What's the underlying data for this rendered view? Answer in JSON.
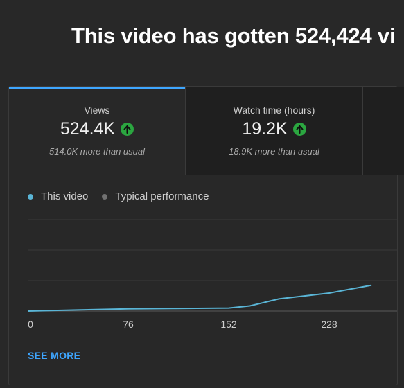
{
  "headline": "This video has gotten 524,424 vi",
  "tabs": [
    {
      "label": "Views",
      "value": "524.4K",
      "trend": "up",
      "sub": "514.0K more than usual",
      "active": true
    },
    {
      "label": "Watch time (hours)",
      "value": "19.2K",
      "trend": "up",
      "sub": "18.9K more than usual",
      "active": false
    }
  ],
  "legend": {
    "this_video": "This video",
    "typical": "Typical performance"
  },
  "colors": {
    "accent": "#3ea6ff",
    "up": "#2ba640",
    "typical": "#717171",
    "line": "#5ab5d6"
  },
  "chart_data": {
    "type": "line",
    "x_ticks": [
      "0",
      "76",
      "152",
      "228"
    ],
    "series": [
      {
        "name": "This video",
        "x": [
          0,
          40,
          76,
          110,
          152,
          168,
          190,
          228,
          260
        ],
        "y": [
          0,
          0.08,
          0.15,
          0.17,
          0.2,
          0.34,
          0.8,
          1.18,
          1.7
        ]
      }
    ],
    "y_gridlines": 4,
    "grid": true,
    "legend_position": "top-left"
  },
  "see_more": "SEE MORE"
}
